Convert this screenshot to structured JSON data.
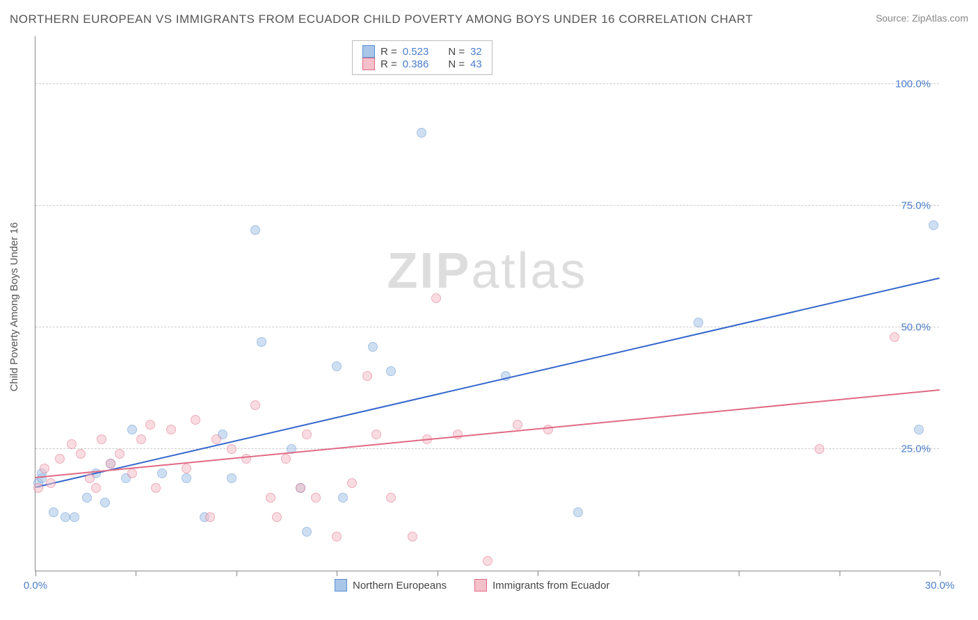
{
  "title": "NORTHERN EUROPEAN VS IMMIGRANTS FROM ECUADOR CHILD POVERTY AMONG BOYS UNDER 16 CORRELATION CHART",
  "source": "Source: ZipAtlas.com",
  "ylabel": "Child Poverty Among Boys Under 16",
  "watermark_a": "ZIP",
  "watermark_b": "atlas",
  "chart": {
    "type": "scatter",
    "background_color": "#ffffff",
    "grid_color": "#cccccc",
    "axis_color": "#888888",
    "label_color": "#4a7dc9",
    "title_color": "#555555",
    "title_fontsize": 17,
    "label_fontsize": 15,
    "ylabel_fontsize": 15,
    "xlim": [
      0,
      30
    ],
    "ylim": [
      0,
      110
    ],
    "ygrid": [
      25,
      50,
      75,
      100
    ],
    "xticks": [
      0,
      3.33,
      6.67,
      10,
      13.33,
      16.67,
      20,
      23.33,
      26.67,
      30
    ],
    "yticklabels": [
      {
        "v": 25,
        "t": "25.0%"
      },
      {
        "v": 50,
        "t": "50.0%"
      },
      {
        "v": 75,
        "t": "75.0%"
      },
      {
        "v": 100,
        "t": "100.0%"
      }
    ],
    "xticklabels": [
      {
        "v": 0,
        "t": "0.0%"
      },
      {
        "v": 30,
        "t": "30.0%"
      }
    ],
    "marker_radius": 7,
    "marker_opacity": 0.55,
    "series": [
      {
        "name": "Northern Europeans",
        "fill": "#a8c6e8",
        "stroke": "#5a8fd0",
        "line_color": "#3366cc",
        "R": "0.523",
        "N": "32",
        "reg": {
          "x1": 0,
          "y1": 17,
          "x2": 30,
          "y2": 60
        },
        "points": [
          [
            0.1,
            18
          ],
          [
            0.2,
            19
          ],
          [
            0.2,
            20
          ],
          [
            0.6,
            12
          ],
          [
            1.0,
            11
          ],
          [
            1.3,
            11
          ],
          [
            1.7,
            15
          ],
          [
            2.0,
            20
          ],
          [
            2.3,
            14
          ],
          [
            2.5,
            22
          ],
          [
            3.0,
            19
          ],
          [
            3.2,
            29
          ],
          [
            4.2,
            20
          ],
          [
            5.0,
            19
          ],
          [
            5.6,
            11
          ],
          [
            6.2,
            28
          ],
          [
            6.5,
            19
          ],
          [
            7.5,
            47
          ],
          [
            7.3,
            70
          ],
          [
            8.5,
            25
          ],
          [
            8.8,
            17
          ],
          [
            9.0,
            8
          ],
          [
            10.0,
            42
          ],
          [
            10.2,
            15
          ],
          [
            11.2,
            46
          ],
          [
            11.8,
            41
          ],
          [
            12.8,
            90
          ],
          [
            15.6,
            40
          ],
          [
            18.0,
            12
          ],
          [
            22.0,
            51
          ],
          [
            29.3,
            29
          ],
          [
            29.8,
            71
          ]
        ]
      },
      {
        "name": "Immigrants from Ecuador",
        "fill": "#f4c0ca",
        "stroke": "#e06a85",
        "line_color": "#e06a85",
        "R": "0.386",
        "N": "43",
        "reg": {
          "x1": 0,
          "y1": 19,
          "x2": 30,
          "y2": 37
        },
        "points": [
          [
            0.1,
            17
          ],
          [
            0.3,
            21
          ],
          [
            0.5,
            18
          ],
          [
            0.8,
            23
          ],
          [
            1.2,
            26
          ],
          [
            1.5,
            24
          ],
          [
            1.8,
            19
          ],
          [
            2.0,
            17
          ],
          [
            2.2,
            27
          ],
          [
            2.5,
            22
          ],
          [
            2.8,
            24
          ],
          [
            3.2,
            20
          ],
          [
            3.5,
            27
          ],
          [
            3.8,
            30
          ],
          [
            4.0,
            17
          ],
          [
            4.5,
            29
          ],
          [
            5.0,
            21
          ],
          [
            5.3,
            31
          ],
          [
            5.8,
            11
          ],
          [
            6.0,
            27
          ],
          [
            6.5,
            25
          ],
          [
            7.0,
            23
          ],
          [
            7.3,
            34
          ],
          [
            7.8,
            15
          ],
          [
            8.0,
            11
          ],
          [
            8.3,
            23
          ],
          [
            8.8,
            17
          ],
          [
            9.0,
            28
          ],
          [
            9.3,
            15
          ],
          [
            10.0,
            7
          ],
          [
            10.5,
            18
          ],
          [
            11.0,
            40
          ],
          [
            11.3,
            28
          ],
          [
            11.8,
            15
          ],
          [
            12.5,
            7
          ],
          [
            13.0,
            27
          ],
          [
            13.3,
            56
          ],
          [
            14.0,
            28
          ],
          [
            15.0,
            2
          ],
          [
            16.0,
            30
          ],
          [
            17.0,
            29
          ],
          [
            26.0,
            25
          ],
          [
            28.5,
            48
          ]
        ]
      }
    ]
  },
  "legend_top": {
    "rows": [
      {
        "sw_fill": "#a8c6e8",
        "sw_stroke": "#5a8fd0",
        "R_lbl": "R =",
        "R": "0.523",
        "N_lbl": "N =",
        "N": "32"
      },
      {
        "sw_fill": "#f4c0ca",
        "sw_stroke": "#e06a85",
        "R_lbl": "R =",
        "R": "0.386",
        "N_lbl": "N =",
        "N": "43"
      }
    ]
  },
  "legend_bottom": [
    {
      "sw_fill": "#a8c6e8",
      "sw_stroke": "#5a8fd0",
      "label": "Northern Europeans"
    },
    {
      "sw_fill": "#f4c0ca",
      "sw_stroke": "#e06a85",
      "label": "Immigrants from Ecuador"
    }
  ]
}
